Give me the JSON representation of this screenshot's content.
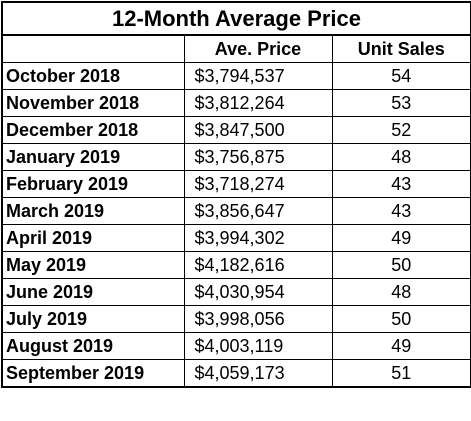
{
  "chart_data": {
    "type": "table",
    "title": "12-Month Average Price",
    "columns": [
      "",
      "Ave. Price",
      "Unit Sales"
    ],
    "rows": [
      {
        "month": "October 2018",
        "price": "$3,794,537",
        "sales": "54"
      },
      {
        "month": "November 2018",
        "price": "$3,812,264",
        "sales": "53"
      },
      {
        "month": "December 2018",
        "price": "$3,847,500",
        "sales": "52"
      },
      {
        "month": "January 2019",
        "price": "$3,756,875",
        "sales": "48"
      },
      {
        "month": "February 2019",
        "price": "$3,718,274",
        "sales": "43"
      },
      {
        "month": "March 2019",
        "price": "$3,856,647",
        "sales": "43"
      },
      {
        "month": "April 2019",
        "price": "$3,994,302",
        "sales": "49"
      },
      {
        "month": "May 2019",
        "price": "$4,182,616",
        "sales": "50"
      },
      {
        "month": "June 2019",
        "price": "$4,030,954",
        "sales": "48"
      },
      {
        "month": "July 2019",
        "price": "$3,998,056",
        "sales": "50"
      },
      {
        "month": "August 2019",
        "price": "$4,003,119",
        "sales": "49"
      },
      {
        "month": "September 2019",
        "price": "$4,059,173",
        "sales": "51"
      }
    ]
  }
}
